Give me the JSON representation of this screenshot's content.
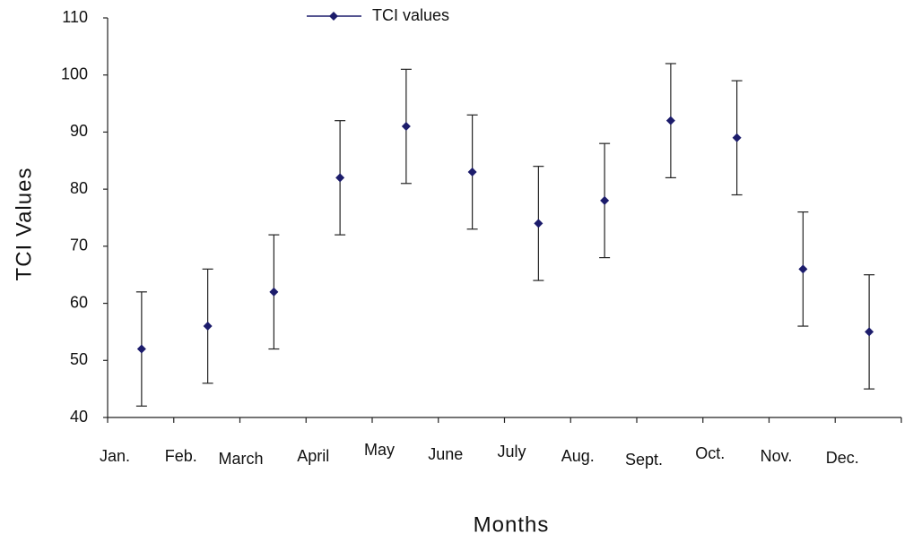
{
  "chart_data": {
    "type": "line",
    "x_label": "Months",
    "y_label": "TCI Values",
    "categories": [
      "Jan.",
      "Feb.",
      "March",
      "April",
      "May",
      "June",
      "July",
      "Aug.",
      "Sept.",
      "Oct.",
      "Nov.",
      "Dec."
    ],
    "series": [
      {
        "name": "TCI values",
        "color": "#1c1c6b",
        "values": [
          52,
          56,
          62,
          82,
          91,
          83,
          74,
          78,
          92,
          89,
          66,
          55
        ],
        "errors": [
          10,
          10,
          10,
          10,
          10,
          10,
          10,
          10,
          10,
          10,
          10,
          10
        ]
      }
    ],
    "ylim": [
      40,
      110
    ],
    "yticks": [
      40,
      50,
      60,
      70,
      80,
      90,
      100,
      110
    ],
    "legend": "top"
  }
}
